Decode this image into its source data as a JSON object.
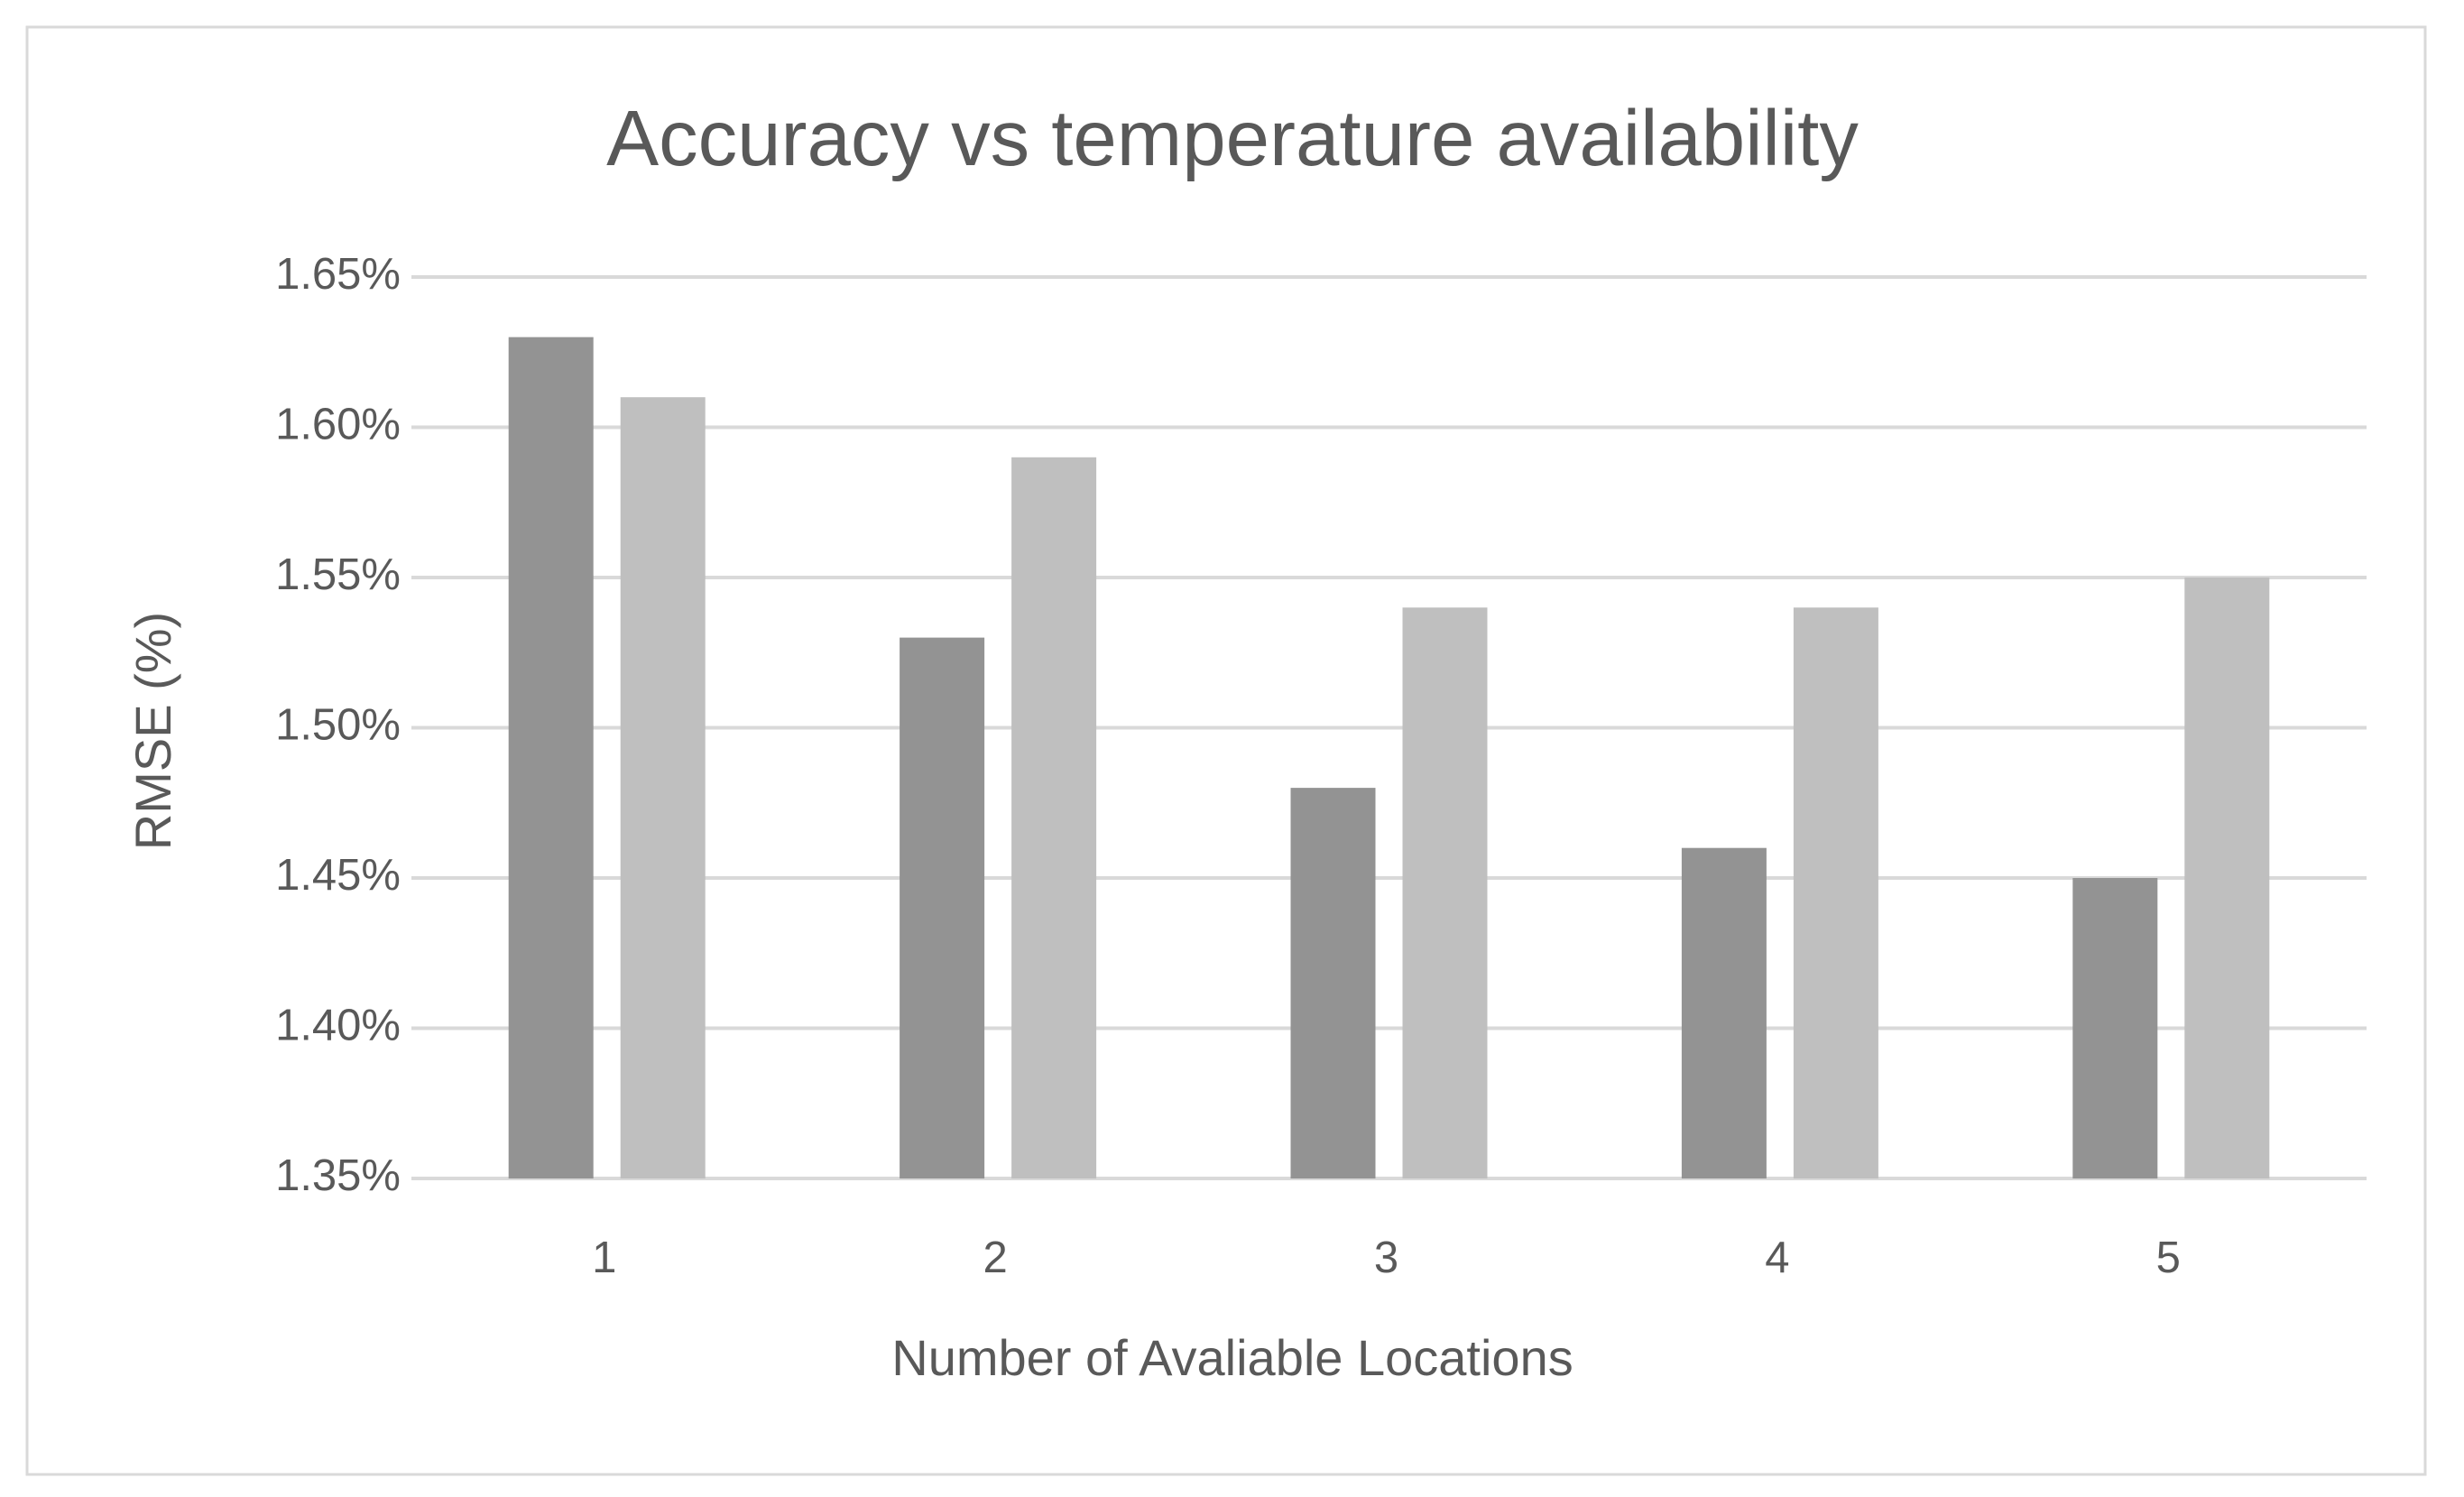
{
  "chart_data": {
    "type": "bar",
    "title": "Accuracy vs temperature availability",
    "x_label": "Number of Avaliable Locations",
    "y_label": "RMSE (%)",
    "categories": [
      "1",
      "2",
      "3",
      "4",
      "5"
    ],
    "series": [
      {
        "color": "#939393",
        "values": [
          1.63,
          1.53,
          1.48,
          1.46,
          1.45
        ]
      },
      {
        "color": "#bfbfbf",
        "values": [
          1.61,
          1.59,
          1.54,
          1.54,
          1.55
        ]
      }
    ],
    "ylim": [
      1.35,
      1.65
    ],
    "yticks": [
      {
        "value": 1.35,
        "label": "1.35%"
      },
      {
        "value": 1.4,
        "label": "1.40%"
      },
      {
        "value": 1.45,
        "label": "1.45%"
      },
      {
        "value": 1.5,
        "label": "1.50%"
      },
      {
        "value": 1.55,
        "label": "1.55%"
      },
      {
        "value": 1.6,
        "label": "1.60%"
      },
      {
        "value": 1.65,
        "label": "1.65%"
      }
    ],
    "grid": true
  }
}
